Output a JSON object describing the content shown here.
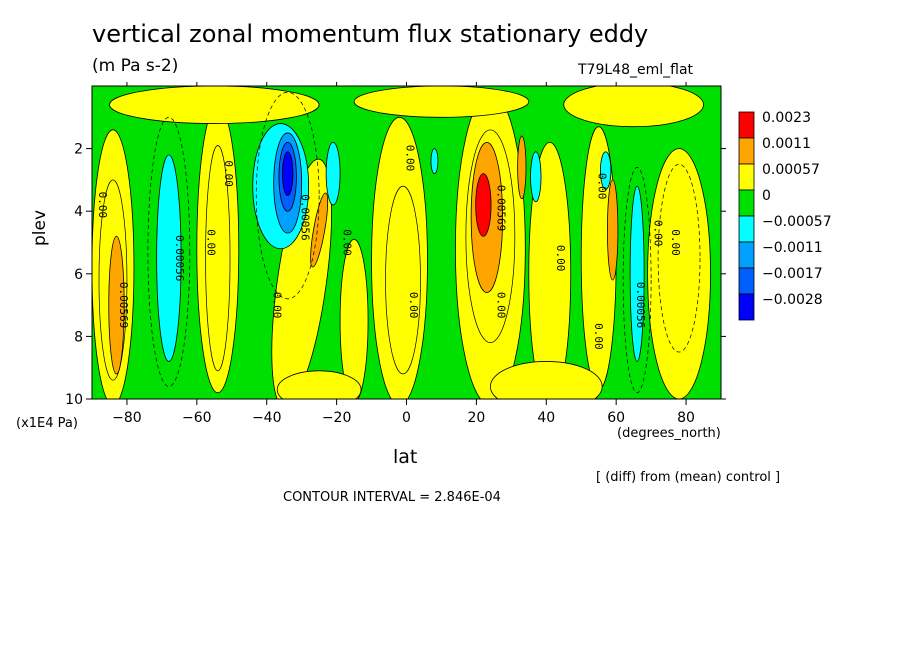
{
  "chart_data": {
    "type": "heatmap",
    "title": "vertical zonal momentum flux stationary eddy",
    "units": "(m Pa s-2)",
    "run_label": "T79L48_eml_flat",
    "xlabel": "lat",
    "x_units": "(degrees_north)",
    "ylabel": "plev",
    "y_units": "(x1E4 Pa)",
    "xlim": [
      -90,
      90
    ],
    "ylim": [
      10,
      0
    ],
    "x_ticks": [
      -80,
      -60,
      -40,
      -20,
      0,
      20,
      40,
      60,
      80
    ],
    "y_ticks": [
      2,
      4,
      6,
      8,
      10
    ],
    "note": "[ (diff) from (mean) control ]",
    "contour_interval_text": "CONTOUR INTERVAL = 2.846E-04",
    "legend": {
      "labels": [
        "0.0023",
        "0.0011",
        "0.00057",
        "0",
        "−0.00057",
        "−0.0011",
        "−0.0017",
        "−0.0028"
      ],
      "colors": [
        "#ff0000",
        "#ffa500",
        "#ffff00",
        "#00e000",
        "#00ffff",
        "#00a0ff",
        "#0060ff",
        "#0000ff"
      ]
    },
    "contour_labels": [
      {
        "text": "0.00",
        "lat": -88,
        "p": 3.8
      },
      {
        "text": "0.00569",
        "lat": -82,
        "p": 7.0
      },
      {
        "text": "0.00056",
        "lat": -66,
        "p": 5.5
      },
      {
        "text": "0.00",
        "lat": -57,
        "p": 5.0
      },
      {
        "text": "0.00",
        "lat": -52,
        "p": 2.8
      },
      {
        "text": "0.00",
        "lat": -38,
        "p": 7.0
      },
      {
        "text": "0.00056",
        "lat": -30,
        "p": 4.2
      },
      {
        "text": "0.00",
        "lat": -18,
        "p": 5.0
      },
      {
        "text": "0.00",
        "lat": 0,
        "p": 2.3
      },
      {
        "text": "0.00",
        "lat": 1,
        "p": 7.0
      },
      {
        "text": "0.00569",
        "lat": 26,
        "p": 3.9
      },
      {
        "text": "0.00",
        "lat": 26,
        "p": 7.0
      },
      {
        "text": "0.00",
        "lat": 43,
        "p": 5.5
      },
      {
        "text": "0.00",
        "lat": 55,
        "p": 3.2
      },
      {
        "text": "0.00",
        "lat": 54,
        "p": 8.0
      },
      {
        "text": "0.00056",
        "lat": 66,
        "p": 7.0
      },
      {
        "text": "0.00",
        "lat": 71,
        "p": 4.7
      },
      {
        "text": "0.00",
        "lat": 76,
        "p": 5.0
      }
    ],
    "features": [
      {
        "name": "red maximum",
        "lat": 22,
        "p": 3.8,
        "sign": "positive",
        "level": 4
      },
      {
        "name": "orange positive",
        "lat": 24,
        "p": 4.2,
        "sign": "positive",
        "level": 3
      },
      {
        "name": "blue minimum",
        "lat": -34,
        "p": 3.0,
        "sign": "negative",
        "level": 3
      },
      {
        "name": "cyan negative",
        "lat": -68,
        "p": 6.0,
        "sign": "negative",
        "level": 1
      },
      {
        "name": "orange positive",
        "lat": -82,
        "p": 7.0,
        "sign": "positive",
        "level": 2
      },
      {
        "name": "cyan negative",
        "lat": 65,
        "p": 6.5,
        "sign": "negative",
        "level": 1
      },
      {
        "name": "orange positive",
        "lat": 58,
        "p": 4.5,
        "sign": "positive",
        "level": 2
      },
      {
        "name": "orange positive",
        "lat": -25,
        "p": 4.8,
        "sign": "positive",
        "level": 2
      }
    ]
  }
}
